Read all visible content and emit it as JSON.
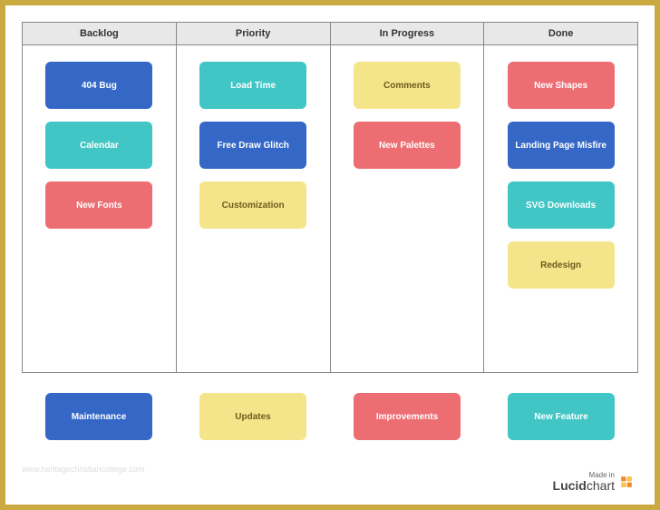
{
  "colors": {
    "frame": "#c9a940",
    "page_bg": "#ffffff",
    "header_bg": "#e8e8e8",
    "border": "#888888",
    "blue": "#3467c6",
    "teal": "#42c5c5",
    "pink": "#ed6e72",
    "yellow": "#f5e58a",
    "yellow_text": "#6b5c1e"
  },
  "board": {
    "columns": [
      {
        "header": "Backlog",
        "cards": [
          {
            "label": "404 Bug",
            "color": "#3467c6",
            "text_color": "#ffffff"
          },
          {
            "label": "Calendar",
            "color": "#42c5c5",
            "text_color": "#ffffff"
          },
          {
            "label": "New Fonts",
            "color": "#ed6e72",
            "text_color": "#ffffff"
          }
        ]
      },
      {
        "header": "Priority",
        "cards": [
          {
            "label": "Load Time",
            "color": "#42c5c5",
            "text_color": "#ffffff"
          },
          {
            "label": "Free Draw Glitch",
            "color": "#3467c6",
            "text_color": "#ffffff"
          },
          {
            "label": "Customization",
            "color": "#f5e58a",
            "text_color": "#6b5c1e"
          }
        ]
      },
      {
        "header": "In Progress",
        "cards": [
          {
            "label": "Comments",
            "color": "#f5e58a",
            "text_color": "#6b5c1e"
          },
          {
            "label": "New Palettes",
            "color": "#ed6e72",
            "text_color": "#ffffff"
          }
        ]
      },
      {
        "header": "Done",
        "cards": [
          {
            "label": "New Shapes",
            "color": "#ed6e72",
            "text_color": "#ffffff"
          },
          {
            "label": "Landing Page Misfire",
            "color": "#3467c6",
            "text_color": "#ffffff"
          },
          {
            "label": "SVG Downloads",
            "color": "#42c5c5",
            "text_color": "#ffffff"
          },
          {
            "label": "Redesign",
            "color": "#f5e58a",
            "text_color": "#6b5c1e"
          }
        ]
      }
    ]
  },
  "legend": [
    {
      "label": "Maintenance",
      "color": "#3467c6",
      "text_color": "#ffffff"
    },
    {
      "label": "Updates",
      "color": "#f5e58a",
      "text_color": "#6b5c1e"
    },
    {
      "label": "Improvements",
      "color": "#ed6e72",
      "text_color": "#ffffff"
    },
    {
      "label": "New Feature",
      "color": "#42c5c5",
      "text_color": "#ffffff"
    }
  ],
  "watermark": "www.heritagechristiancollege.com",
  "footer": {
    "made_in": "Made in",
    "brand_bold": "Lucid",
    "brand_light": "chart",
    "icon_main": "#f28c28",
    "icon_accent": "#fcbf49"
  }
}
